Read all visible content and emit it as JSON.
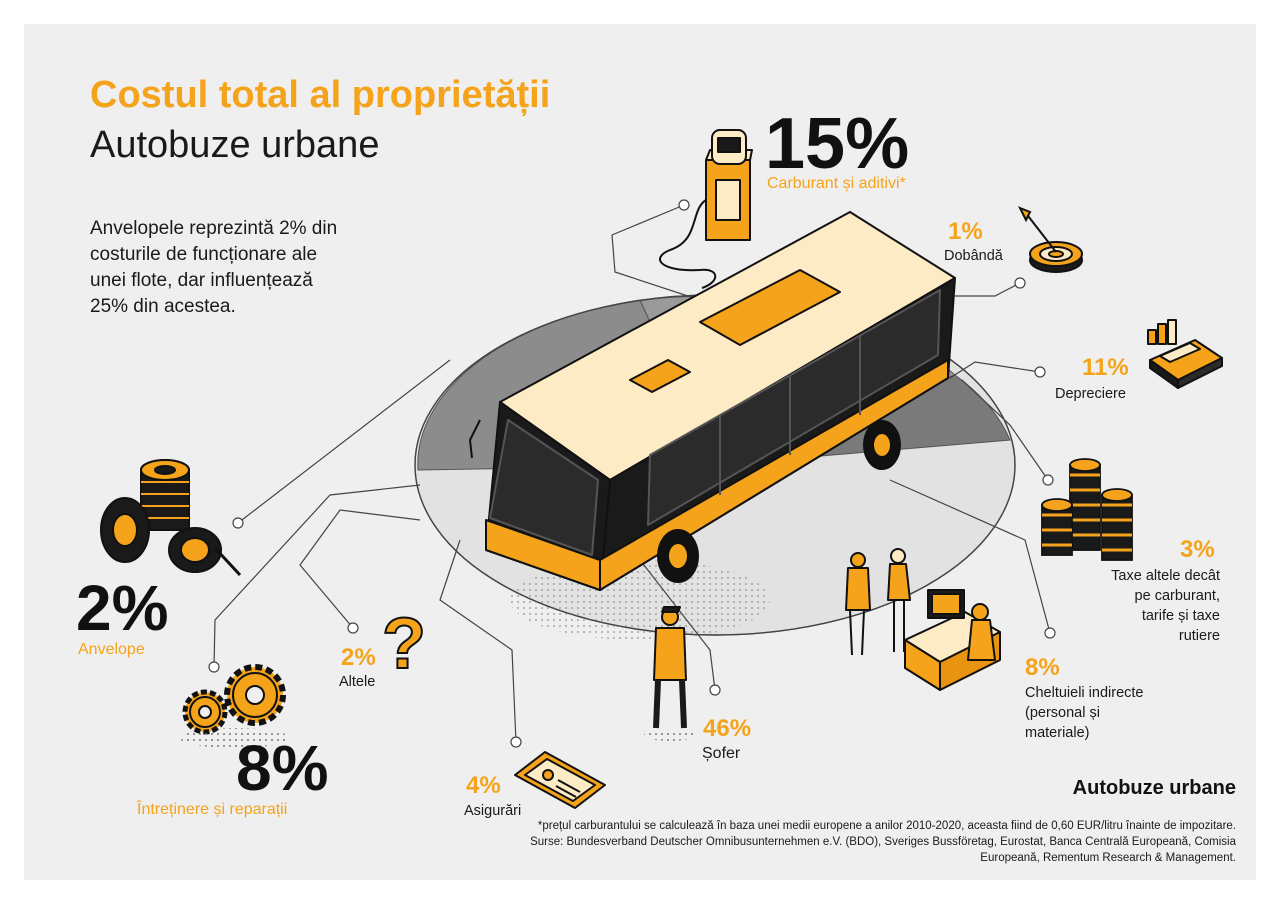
{
  "title": "Costul total al proprietății",
  "subtitle": "Autobuze urbane",
  "intro": "Anvelopele reprezintă 2% din costurile de funcționare ale unei flote, dar influențează 25% din acestea.",
  "items": {
    "fuel": {
      "value": "15%",
      "label": "Carburant și aditivi*"
    },
    "interest": {
      "value": "1%",
      "label": "Dobândă"
    },
    "depreciation": {
      "value": "11%",
      "label": "Depreciere"
    },
    "taxes": {
      "value": "3%",
      "label_lines": [
        "Taxe altele decât",
        "pe carburant,",
        "tarife și taxe",
        "rutiere"
      ]
    },
    "overheads": {
      "value": "8%",
      "label_lines": [
        "Cheltuieli indirecte",
        "(personal și",
        "materiale)"
      ]
    },
    "driver": {
      "value": "46%",
      "label": "Șofer"
    },
    "insurance": {
      "value": "4%",
      "label": "Asigurări"
    },
    "other": {
      "value": "2%",
      "label": "Altele"
    },
    "tyres": {
      "value": "2%",
      "label": "Anvelope"
    },
    "maintenance": {
      "value": "8%",
      "label": "Întreținere și reparații"
    }
  },
  "footer": {
    "title": "Autobuze urbane",
    "note": "*prețul carburantului se calculează în baza unei medii europene a anilor 2010-2020, aceasta fiind de 0,60 EUR/litru înainte de impozitare.",
    "sources_line1": "Surse: Bundesverband Deutscher Omnibusunternehmen e.V. (BDO), Sveriges Bussföretag, Eurostat, Banca Centrală Europeană, Comisia",
    "sources_line2": "Europeană, Rementum Research & Management."
  },
  "colors": {
    "accent": "#f5a31a",
    "dark": "#111111",
    "background": "#efefef"
  },
  "icons": [
    "fuel-pump-icon",
    "target-icon",
    "calculator-icon",
    "coins-icon",
    "office-workers-icon",
    "driver-icon",
    "insurance-document-icon",
    "question-mark-icon",
    "gears-icon",
    "tyres-icon",
    "bus-icon"
  ]
}
